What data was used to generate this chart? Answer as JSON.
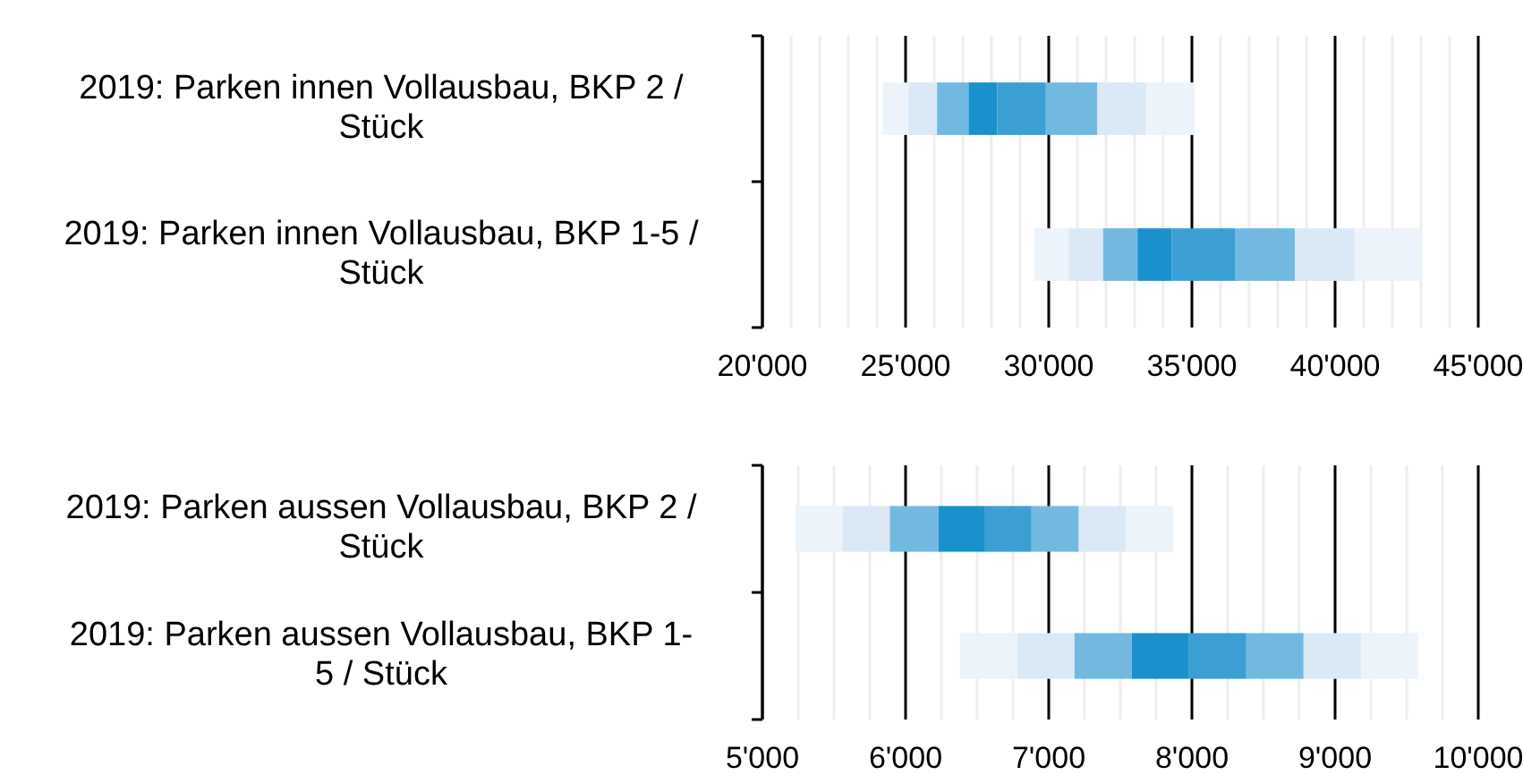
{
  "chart_data": [
    {
      "type": "bar",
      "orientation": "horizontal",
      "grid": "x",
      "categories": [
        "2019: Parken innen Vollausbau, BKP 2 / Stück",
        "2019: Parken innen Vollausbau, BKP 1-5 / Stück"
      ],
      "xlim": [
        20000,
        45000
      ],
      "xticks": [
        {
          "value": 20000,
          "label": "20'000"
        },
        {
          "value": 21000,
          "label": null
        },
        {
          "value": 22000,
          "label": null
        },
        {
          "value": 23000,
          "label": null
        },
        {
          "value": 24000,
          "label": null
        },
        {
          "value": 25000,
          "label": "25'000"
        },
        {
          "value": 26000,
          "label": null
        },
        {
          "value": 27000,
          "label": null
        },
        {
          "value": 28000,
          "label": null
        },
        {
          "value": 29000,
          "label": null
        },
        {
          "value": 30000,
          "label": "30'000"
        },
        {
          "value": 31000,
          "label": null
        },
        {
          "value": 32000,
          "label": null
        },
        {
          "value": 33000,
          "label": null
        },
        {
          "value": 34000,
          "label": null
        },
        {
          "value": 35000,
          "label": "35'000"
        },
        {
          "value": 36000,
          "label": null
        },
        {
          "value": 37000,
          "label": null
        },
        {
          "value": 38000,
          "label": null
        },
        {
          "value": 39000,
          "label": null
        },
        {
          "value": 40000,
          "label": "40'000"
        },
        {
          "value": 41000,
          "label": null
        },
        {
          "value": 42000,
          "label": null
        },
        {
          "value": 43000,
          "label": null
        },
        {
          "value": 44000,
          "label": null
        },
        {
          "value": 45000,
          "label": "45'000"
        }
      ],
      "series": [
        {
          "color": "#ecf3fa",
          "base": [
            24200,
            29500
          ],
          "values": [
            900,
            1200
          ]
        },
        {
          "color": "#dbe8f5",
          "base": [
            25100,
            30700
          ],
          "values": [
            1000,
            1200
          ]
        },
        {
          "color": "#71b9e1",
          "base": [
            26100,
            31900
          ],
          "values": [
            1100,
            1200
          ]
        },
        {
          "color": "#1a90cc",
          "base": [
            27200,
            33100
          ],
          "values": [
            1000,
            1200
          ]
        },
        {
          "color": "#3b9fd4",
          "base": [
            28200,
            34300
          ],
          "values": [
            1700,
            2200
          ]
        },
        {
          "color": "#71b9e1",
          "base": [
            29900,
            36500
          ],
          "values": [
            1800,
            2100
          ]
        },
        {
          "color": "#dbe8f5",
          "base": [
            31700,
            38600
          ],
          "values": [
            1700,
            2100
          ]
        },
        {
          "color": "#ecf3fa",
          "base": [
            33400,
            40700
          ],
          "values": [
            1700,
            2300
          ]
        }
      ]
    },
    {
      "type": "bar",
      "orientation": "horizontal",
      "grid": "x",
      "categories": [
        "2019: Parken aussen Vollausbau, BKP 2 / Stück",
        "2019: Parken aussen Vollausbau, BKP 1-5 / Stück"
      ],
      "xlim": [
        5000,
        10000
      ],
      "xticks": [
        {
          "value": 5000,
          "label": "5'000"
        },
        {
          "value": 5250,
          "label": null
        },
        {
          "value": 5500,
          "label": null
        },
        {
          "value": 5750,
          "label": null
        },
        {
          "value": 6000,
          "label": "6'000"
        },
        {
          "value": 6250,
          "label": null
        },
        {
          "value": 6500,
          "label": null
        },
        {
          "value": 6750,
          "label": null
        },
        {
          "value": 7000,
          "label": "7'000"
        },
        {
          "value": 7250,
          "label": null
        },
        {
          "value": 7500,
          "label": null
        },
        {
          "value": 7750,
          "label": null
        },
        {
          "value": 8000,
          "label": "8'000"
        },
        {
          "value": 8250,
          "label": null
        },
        {
          "value": 8500,
          "label": null
        },
        {
          "value": 8750,
          "label": null
        },
        {
          "value": 9000,
          "label": "9'000"
        },
        {
          "value": 9250,
          "label": null
        },
        {
          "value": 9500,
          "label": null
        },
        {
          "value": 9750,
          "label": null
        },
        {
          "value": 10000,
          "label": "10'000"
        }
      ],
      "series": [
        {
          "color": "#ecf3fa",
          "base": [
            5230,
            6380
          ],
          "values": [
            330,
            400
          ]
        },
        {
          "color": "#dbe8f5",
          "base": [
            5560,
            6780
          ],
          "values": [
            330,
            400
          ]
        },
        {
          "color": "#71b9e1",
          "base": [
            5890,
            7180
          ],
          "values": [
            340,
            400
          ]
        },
        {
          "color": "#1a90cc",
          "base": [
            6230,
            7580
          ],
          "values": [
            320,
            400
          ]
        },
        {
          "color": "#3b9fd4",
          "base": [
            6550,
            7980
          ],
          "values": [
            330,
            400
          ]
        },
        {
          "color": "#71b9e1",
          "base": [
            6880,
            8380
          ],
          "values": [
            330,
            400
          ]
        },
        {
          "color": "#dbe8f5",
          "base": [
            7210,
            8780
          ],
          "values": [
            330,
            400
          ]
        },
        {
          "color": "#ecf3fa",
          "base": [
            7540,
            9180
          ],
          "values": [
            330,
            400
          ]
        }
      ]
    }
  ]
}
